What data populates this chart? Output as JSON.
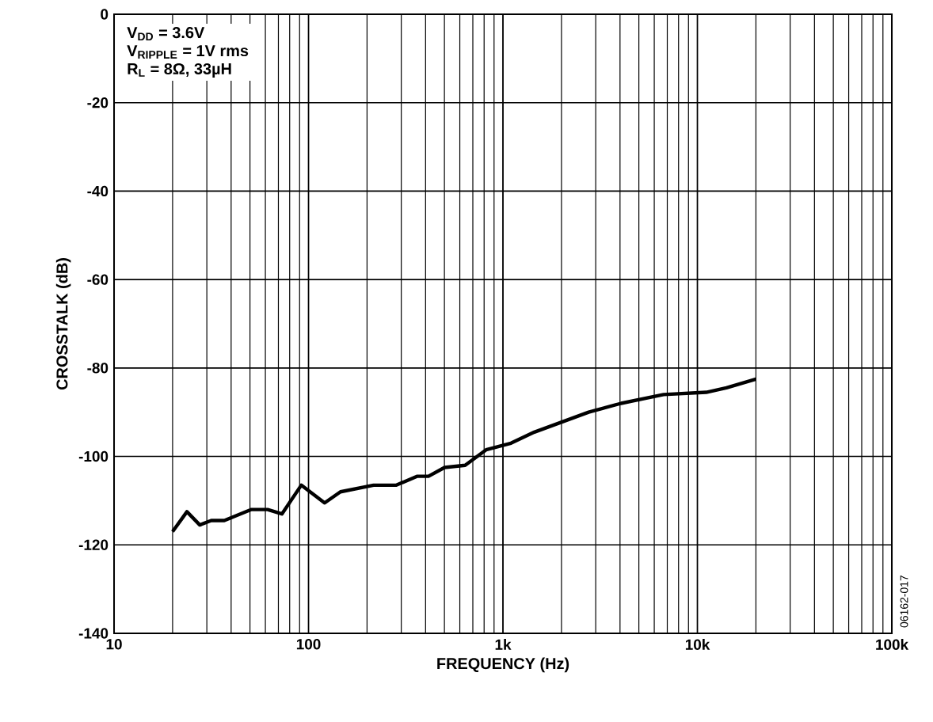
{
  "chart_data": {
    "type": "line",
    "xlabel": "FREQUENCY (Hz)",
    "ylabel": "CROSSTALK (dB)",
    "log": "x",
    "grid": true,
    "marker": "none",
    "line_style": "solid",
    "xlim": [
      10,
      100000
    ],
    "ylim": [
      -140,
      0
    ],
    "xticks": [
      10,
      100,
      {
        "value": 1000,
        "label": "1k"
      },
      {
        "value": 10000,
        "label": "10k"
      },
      {
        "value": 100000,
        "label": "100k"
      }
    ],
    "yticks": [
      -140,
      -120,
      -100,
      -80,
      -60,
      -40,
      -20,
      0
    ],
    "annotations": [
      "V$_{DD}$ = 3.6V",
      "V$_{RIPPLE}$ = 1V rms",
      "R$_{L}$ = 8Ω, 33µH",
      "06162-017"
    ],
    "series": [
      {
        "color": "#000000",
        "x": [
          20,
          23.7,
          27.6,
          31.6,
          36.9,
          50.9,
          61.6,
          73,
          91.8,
          121,
          146,
          216,
          283,
          361,
          414,
          501,
          639,
          819,
          1100,
          1450,
          2760,
          4050,
          6700,
          11100,
          14100,
          20000
        ],
        "values": [
          -117,
          -112.5,
          -115.5,
          -114.5,
          -114.5,
          -112,
          -112,
          -113,
          -106.5,
          -110.5,
          -108,
          -106.5,
          -106.5,
          -104.5,
          -104.5,
          -102.5,
          -102,
          -98.5,
          -97,
          -94.5,
          -90,
          -88,
          -86,
          -85.5,
          -84.5,
          -82.5
        ]
      }
    ]
  }
}
